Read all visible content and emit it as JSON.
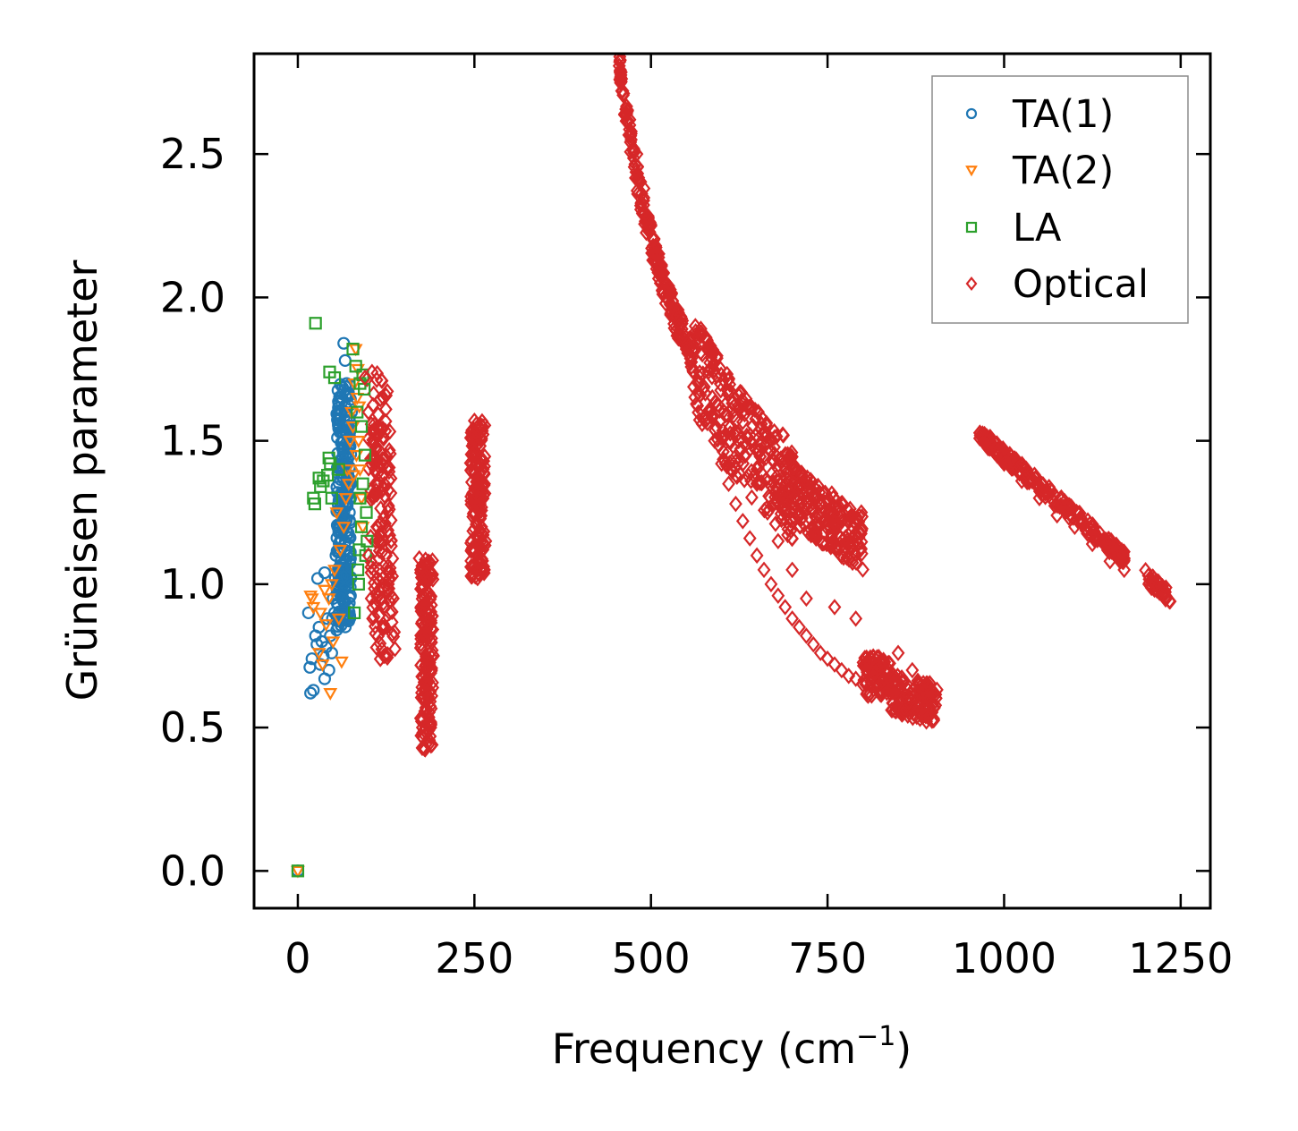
{
  "chart_data": {
    "type": "scatter",
    "title": "",
    "xlabel": "Frequency (cm",
    "xlabel_sup": "−1",
    "xlabel_suffix": ")",
    "ylabel": "Grüneisen parameter",
    "xlim": [
      -62,
      1292
    ],
    "ylim": [
      -0.13,
      2.85
    ],
    "xticks": [
      0,
      250,
      500,
      750,
      1000,
      1250
    ],
    "xtick_labels": [
      "0",
      "250",
      "500",
      "750",
      "1000",
      "1250"
    ],
    "yticks": [
      0.0,
      0.5,
      1.0,
      1.5,
      2.0,
      2.5
    ],
    "ytick_labels": [
      "0.0",
      "0.5",
      "1.0",
      "1.5",
      "2.0",
      "2.5"
    ],
    "legend_position": "top-right",
    "series": [
      {
        "name": "TA(1)",
        "marker": "circle",
        "color": "#1f77b4",
        "points": [
          [
            0,
            0.0
          ],
          [
            15,
            0.9
          ],
          [
            17,
            0.71
          ],
          [
            18,
            0.62
          ],
          [
            20,
            0.74
          ],
          [
            22,
            0.63
          ],
          [
            25,
            0.82
          ],
          [
            27,
            0.79
          ],
          [
            28,
            1.02
          ],
          [
            30,
            0.85
          ],
          [
            32,
            0.72
          ],
          [
            34,
            0.8
          ],
          [
            36,
            0.75
          ],
          [
            38,
            0.67
          ],
          [
            38,
            1.04
          ],
          [
            40,
            0.78
          ],
          [
            42,
            0.88
          ],
          [
            44,
            0.7
          ],
          [
            46,
            0.82
          ],
          [
            48,
            0.76
          ],
          [
            50,
            0.95
          ],
          [
            52,
            0.9
          ],
          [
            54,
            1.1
          ],
          [
            55,
            0.84
          ],
          [
            56,
            1.0
          ],
          [
            58,
            1.18
          ],
          [
            59,
            0.87
          ],
          [
            60,
            1.25
          ],
          [
            61,
            1.08
          ],
          [
            62,
            1.32
          ],
          [
            63,
            0.97
          ],
          [
            63,
            1.4
          ],
          [
            64,
            1.2
          ],
          [
            65,
            1.5
          ],
          [
            65,
            1.84
          ],
          [
            66,
            1.3
          ],
          [
            67,
            1.6
          ],
          [
            67,
            1.78
          ],
          [
            68,
            1.45
          ],
          [
            69,
            1.7
          ],
          [
            70,
            1.55
          ],
          [
            71,
            1.38
          ],
          [
            72,
            1.66
          ],
          [
            73,
            1.25
          ],
          [
            74,
            1.48
          ],
          [
            75,
            1.35
          ],
          [
            76,
            1.6
          ],
          [
            60,
            1.15
          ],
          [
            62,
            1.05
          ],
          [
            64,
            0.95
          ],
          [
            66,
            1.12
          ],
          [
            68,
            1.28
          ],
          [
            70,
            1.42
          ],
          [
            57,
            0.93
          ],
          [
            53,
            1.02
          ],
          [
            49,
            0.88
          ]
        ]
      },
      {
        "name": "TA(2)",
        "marker": "triangle-down",
        "color": "#ff7f0e",
        "points": [
          [
            0,
            0.0
          ],
          [
            18,
            0.96
          ],
          [
            20,
            0.95
          ],
          [
            22,
            0.92
          ],
          [
            30,
            0.76
          ],
          [
            32,
            0.9
          ],
          [
            35,
            0.72
          ],
          [
            38,
            0.98
          ],
          [
            40,
            0.86
          ],
          [
            44,
            0.95
          ],
          [
            46,
            0.62
          ],
          [
            48,
            1.0
          ],
          [
            50,
            0.8
          ],
          [
            52,
            1.05
          ],
          [
            55,
            1.25
          ],
          [
            58,
            0.88
          ],
          [
            60,
            1.12
          ],
          [
            62,
            0.73
          ],
          [
            65,
            1.2
          ],
          [
            68,
            1.3
          ],
          [
            70,
            1.4
          ],
          [
            72,
            1.35
          ],
          [
            74,
            1.5
          ],
          [
            76,
            1.6
          ],
          [
            78,
            1.55
          ],
          [
            80,
            1.7
          ],
          [
            82,
            1.82
          ],
          [
            84,
            1.65
          ],
          [
            86,
            1.5
          ],
          [
            88,
            1.4
          ],
          [
            90,
            1.3
          ],
          [
            92,
            1.2
          ],
          [
            85,
            1.75
          ],
          [
            87,
            1.62
          ],
          [
            83,
            1.45
          ],
          [
            79,
            1.38
          ]
        ]
      },
      {
        "name": "LA",
        "marker": "square",
        "color": "#2ca02c",
        "points": [
          [
            0,
            0.0
          ],
          [
            25,
            1.91
          ],
          [
            22,
            1.3
          ],
          [
            24,
            1.28
          ],
          [
            30,
            1.37
          ],
          [
            32,
            1.34
          ],
          [
            36,
            1.36
          ],
          [
            42,
            1.38
          ],
          [
            44,
            1.44
          ],
          [
            46,
            1.42
          ],
          [
            45,
            1.74
          ],
          [
            48,
            1.3
          ],
          [
            52,
            1.72
          ],
          [
            58,
            1.4
          ],
          [
            78,
            1.82
          ],
          [
            80,
            0.9
          ],
          [
            82,
            1.76
          ],
          [
            84,
            1.6
          ],
          [
            85,
            1.05
          ],
          [
            86,
            1.0
          ],
          [
            87,
            1.12
          ],
          [
            88,
            1.7
          ],
          [
            88,
            1.3
          ],
          [
            90,
            1.2
          ],
          [
            90,
            1.55
          ],
          [
            92,
            1.73
          ],
          [
            92,
            1.35
          ],
          [
            94,
            1.68
          ],
          [
            95,
            1.45
          ],
          [
            96,
            1.1
          ],
          [
            97,
            1.25
          ],
          [
            98,
            1.15
          ]
        ]
      },
      {
        "name": "Optical",
        "marker": "diamond",
        "color": "#d62728",
        "groups": [
          {
            "band": "90-140",
            "x": [
              90,
              135
            ],
            "y": [
              0.73,
              1.74
            ]
          },
          {
            "band": "170-195",
            "x": [
              170,
              195
            ],
            "y": [
              0.42,
              1.09
            ]
          },
          {
            "band": "240-270",
            "x": [
              240,
              270
            ],
            "y": [
              1.02,
              1.57
            ]
          },
          {
            "band": "455-905",
            "x": [
              455,
              905
            ],
            "y": [
              0.56,
              2.72
            ]
          },
          {
            "band": "965-1235",
            "x": [
              965,
              1235
            ],
            "y": [
              0.94,
              1.5
            ]
          }
        ],
        "points": [
          [
            95,
            1.72
          ],
          [
            100,
            1.6
          ],
          [
            105,
            1.74
          ],
          [
            108,
            1.5
          ],
          [
            110,
            1.35
          ],
          [
            112,
            1.2
          ],
          [
            115,
            1.05
          ],
          [
            118,
            0.95
          ],
          [
            120,
            0.85
          ],
          [
            122,
            0.75
          ],
          [
            125,
            1.1
          ],
          [
            128,
            1.0
          ],
          [
            130,
            0.9
          ],
          [
            132,
            1.15
          ],
          [
            135,
            0.95
          ],
          [
            100,
            1.1
          ],
          [
            104,
            0.95
          ],
          [
            106,
            0.88
          ],
          [
            172,
            1.09
          ],
          [
            174,
            1.05
          ],
          [
            176,
            1.0
          ],
          [
            178,
            0.92
          ],
          [
            180,
            0.85
          ],
          [
            182,
            0.7
          ],
          [
            185,
            0.6
          ],
          [
            188,
            0.5
          ],
          [
            190,
            0.44
          ],
          [
            192,
            0.75
          ],
          [
            186,
            0.72
          ],
          [
            180,
            0.65
          ],
          [
            250,
            1.57
          ],
          [
            252,
            1.5
          ],
          [
            254,
            1.42
          ],
          [
            256,
            1.35
          ],
          [
            258,
            1.28
          ],
          [
            260,
            1.2
          ],
          [
            262,
            1.12
          ],
          [
            264,
            1.05
          ],
          [
            266,
            1.15
          ],
          [
            248,
            1.45
          ],
          [
            460,
            2.72
          ],
          [
            470,
            2.62
          ],
          [
            480,
            2.5
          ],
          [
            490,
            2.38
          ],
          [
            500,
            2.25
          ],
          [
            510,
            2.15
          ],
          [
            520,
            2.05
          ],
          [
            530,
            1.97
          ],
          [
            540,
            1.9
          ],
          [
            550,
            1.82
          ],
          [
            560,
            1.74
          ],
          [
            570,
            1.66
          ],
          [
            580,
            1.58
          ],
          [
            590,
            1.5
          ],
          [
            600,
            1.42
          ],
          [
            610,
            1.35
          ],
          [
            620,
            1.28
          ],
          [
            630,
            1.22
          ],
          [
            640,
            1.16
          ],
          [
            650,
            1.1
          ],
          [
            660,
            1.05
          ],
          [
            670,
            1.0
          ],
          [
            680,
            0.96
          ],
          [
            690,
            0.92
          ],
          [
            700,
            0.88
          ],
          [
            710,
            0.85
          ],
          [
            720,
            0.82
          ],
          [
            730,
            0.79
          ],
          [
            740,
            0.76
          ],
          [
            750,
            0.74
          ],
          [
            760,
            0.72
          ],
          [
            770,
            0.7
          ],
          [
            780,
            0.68
          ],
          [
            790,
            0.67
          ],
          [
            800,
            0.65
          ],
          [
            820,
            0.64
          ],
          [
            840,
            0.63
          ],
          [
            860,
            0.61
          ],
          [
            880,
            0.59
          ],
          [
            900,
            0.57
          ],
          [
            650,
            1.35
          ],
          [
            665,
            1.25
          ],
          [
            680,
            1.15
          ],
          [
            700,
            1.05
          ],
          [
            720,
            0.95
          ],
          [
            760,
            0.92
          ],
          [
            790,
            0.88
          ],
          [
            850,
            0.76
          ],
          [
            870,
            0.7
          ],
          [
            975,
            1.5
          ],
          [
            1000,
            1.42
          ],
          [
            1025,
            1.36
          ],
          [
            1050,
            1.3
          ],
          [
            1075,
            1.24
          ],
          [
            1100,
            1.2
          ],
          [
            1125,
            1.14
          ],
          [
            1150,
            1.08
          ],
          [
            1170,
            1.05
          ],
          [
            1205,
            1.0
          ],
          [
            1220,
            0.97
          ],
          [
            1235,
            0.94
          ]
        ]
      }
    ]
  }
}
